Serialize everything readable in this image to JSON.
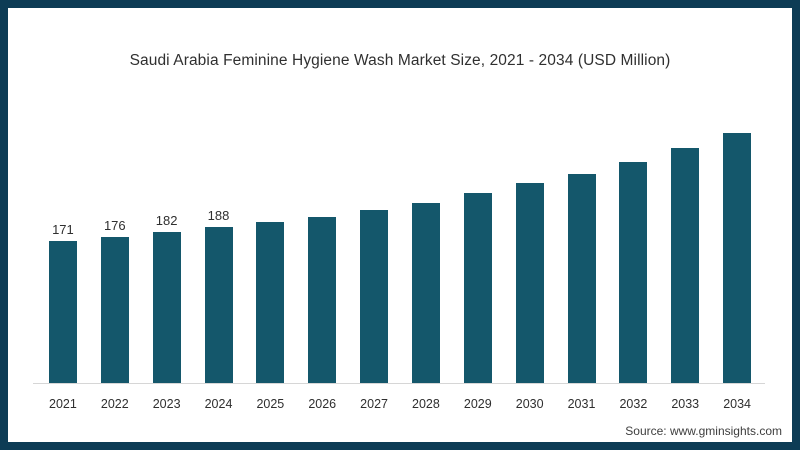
{
  "frame": {
    "background": "#ffffff"
  },
  "colors": {
    "frame_border": "#0d3c55",
    "bar": "#14576b",
    "axis_line": "#d6d6d6",
    "title_text": "#303030",
    "label_text": "#2f2f2f",
    "source_text": "#3e3e3e"
  },
  "chart_data": {
    "type": "bar",
    "title": "Saudi Arabia Feminine Hygiene Wash Market Size, 2021 - 2034 (USD Million)",
    "categories": [
      "2021",
      "2022",
      "2023",
      "2024",
      "2025",
      "2026",
      "2027",
      "2028",
      "2029",
      "2030",
      "2031",
      "2032",
      "2033",
      "2034"
    ],
    "values": [
      171,
      176,
      182,
      188,
      194,
      200,
      208,
      217,
      228,
      240,
      252,
      266,
      283,
      301
    ],
    "data_labels": [
      "171",
      "176",
      "182",
      "188",
      null,
      null,
      null,
      null,
      null,
      null,
      null,
      null,
      null,
      null
    ],
    "xlabel": "",
    "ylabel": "",
    "ylim": [
      0,
      320
    ],
    "grid": false,
    "legend": false,
    "bar_color": "#14576b"
  },
  "source": {
    "label": "Source: www.gminsights.com"
  }
}
